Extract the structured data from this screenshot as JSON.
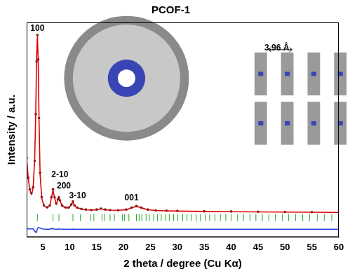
{
  "chart_data": {
    "type": "line",
    "title": "PCOF-1",
    "x_label": "2 theta / degree (Cu Kα)",
    "y_label": "Intensity / a.u.",
    "xlim": [
      2,
      60
    ],
    "xticks": [
      5,
      10,
      15,
      20,
      25,
      30,
      35,
      40,
      45,
      50,
      55,
      60
    ],
    "ylim": [
      0,
      110
    ],
    "tick_labels": "x",
    "grid": false,
    "x": [
      2,
      2.3,
      2.6,
      2.9,
      3.2,
      3.5,
      3.7,
      3.85,
      4.0,
      4.15,
      4.3,
      4.5,
      4.8,
      5.2,
      5.8,
      6.3,
      6.6,
      6.9,
      7.2,
      7.5,
      7.8,
      8.0,
      8.2,
      8.6,
      9.2,
      9.8,
      10.3,
      10.6,
      10.9,
      11.4,
      12.2,
      13,
      14,
      15,
      15.8,
      16.6,
      17.5,
      19,
      20.5,
      21.5,
      22.4,
      23.3,
      24.5,
      26,
      28,
      30,
      35,
      40,
      45,
      50,
      55,
      60
    ],
    "series": [
      {
        "type": "scatter",
        "marker": "circle",
        "color": "#8b1a1a",
        "values": [
          40.5,
          30.5,
          24.5,
          22.5,
          25.5,
          39,
          63,
          90,
          103.5,
          91,
          61,
          33,
          20.5,
          16.3,
          15.2,
          16.2,
          20.5,
          24.5,
          20.3,
          17.2,
          19.3,
          20.4,
          18.8,
          16.2,
          15.2,
          15.1,
          16.7,
          18.3,
          16.2,
          15.1,
          14.4,
          14.1,
          13.9,
          14.1,
          14.6,
          14.1,
          13.9,
          13.8,
          14.1,
          15.1,
          15.9,
          15.1,
          14.1,
          13.7,
          13.5,
          13.4,
          13.2,
          13.1,
          13,
          12.9,
          12.8,
          12.7
        ]
      },
      {
        "type": "line",
        "line_style": "solid",
        "color": "#e00000",
        "values": [
          40,
          30,
          24,
          22,
          25,
          40,
          65,
          92,
          103,
          90,
          60,
          32,
          20,
          16,
          15,
          16,
          20,
          24,
          20,
          17,
          19,
          20,
          18.5,
          16,
          15,
          15,
          16.5,
          18,
          16,
          15,
          14.3,
          14,
          13.8,
          14,
          14.5,
          14,
          13.8,
          13.7,
          14,
          15,
          15.8,
          15,
          14,
          13.6,
          13.4,
          13.3,
          13.1,
          13,
          12.9,
          12.8,
          12.7,
          12.6
        ]
      },
      {
        "type": "line",
        "line_style": "solid",
        "color": "#2040e0",
        "values": [
          4.2,
          4.2,
          4.2,
          4.2,
          4.2,
          3.2,
          2.4,
          2.6,
          4.4,
          4.8,
          4.8,
          4.6,
          4.3,
          4.1,
          4.0,
          4,
          4.3,
          4.3,
          4.1,
          4,
          4,
          4.2,
          4.1,
          4,
          4,
          4,
          4,
          4.1,
          4,
          4,
          4,
          4,
          4,
          4,
          4,
          4,
          4,
          4,
          4,
          4,
          4,
          4,
          4,
          4,
          4,
          4,
          4,
          4,
          4,
          4,
          4,
          4
        ]
      },
      {
        "type": "scatter",
        "marker": "vline",
        "color": "#22aa22",
        "x": [
          4.0,
          6.9,
          8.0,
          10.6,
          12.0,
          13.9,
          14.5,
          16.0,
          16.5,
          17.5,
          18.3,
          19.8,
          20.2,
          21.0,
          22.4,
          22.9,
          23.4,
          24.2,
          24.8,
          25.6,
          26.3,
          27.0,
          27.8,
          28.5,
          29.3,
          30.1,
          31.0,
          31.8,
          32.6,
          33.5,
          34.3,
          35.2,
          36.0,
          37.0,
          38.0,
          39.0,
          40.0,
          41.2,
          42.3,
          43.5,
          44.6,
          45.8,
          47.0,
          48.2,
          49.5,
          50.7,
          52.0,
          53.3,
          54.6,
          56.0,
          57.3,
          58.7
        ],
        "values": [
          10,
          10,
          10,
          10,
          10,
          10,
          10,
          10,
          10,
          10,
          10,
          10,
          10,
          10,
          10,
          10,
          10,
          10,
          10,
          10,
          10,
          10,
          10,
          10,
          10,
          10,
          10,
          10,
          10,
          10,
          10,
          10,
          10,
          10,
          10,
          10,
          10,
          10,
          10,
          10,
          10,
          10,
          10,
          10,
          10,
          10,
          10,
          10,
          10,
          10,
          10,
          10
        ]
      }
    ],
    "annotations": [
      {
        "text": "100",
        "x": 4.0,
        "y": 107
      },
      {
        "text": "2-10",
        "x": 6.6,
        "y": 32
      },
      {
        "text": "200",
        "x": 7.6,
        "y": 26
      },
      {
        "text": "3-10",
        "x": 9.9,
        "y": 21
      },
      {
        "text": "001",
        "x": 21.5,
        "y": 20
      },
      {
        "text": "3.96 Å",
        "x": 48.5,
        "y": 97
      }
    ]
  }
}
